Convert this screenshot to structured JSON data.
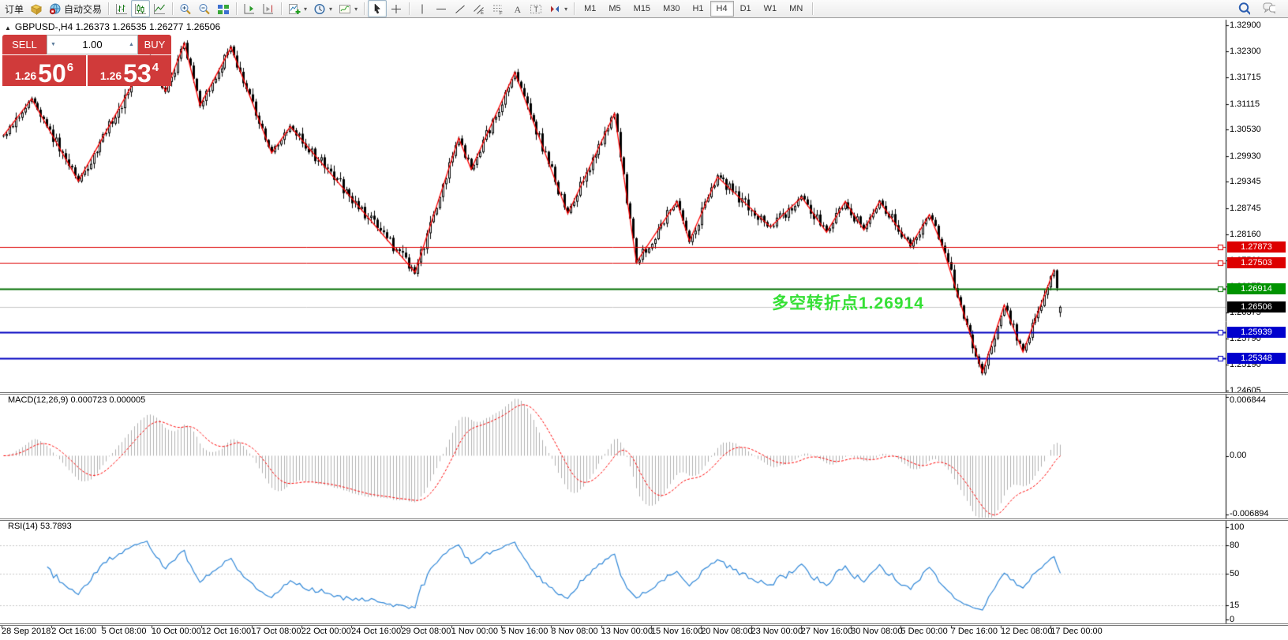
{
  "toolbar": {
    "left": [
      {
        "name": "new-order-button",
        "label": "订单",
        "icon": null
      },
      {
        "name": "gold-box-button",
        "label": "",
        "icon": "gold-box-icon"
      },
      {
        "name": "autotrade-button",
        "label": "自动交易",
        "icon": "autotrade-icon"
      }
    ],
    "groups": [
      {
        "items": [
          {
            "name": "ohlc-bars",
            "icon": "ohlc-bars-icon"
          },
          {
            "name": "candlesticks",
            "icon": "candlestick-icon",
            "active": true
          },
          {
            "name": "line-chart",
            "icon": "line-chart-icon"
          }
        ]
      },
      {
        "items": [
          {
            "name": "zoom-in",
            "icon": "zoom-in-icon"
          },
          {
            "name": "zoom-out",
            "icon": "zoom-out-icon"
          },
          {
            "name": "tile-windows",
            "icon": "tile-windows-icon"
          }
        ]
      },
      {
        "items": [
          {
            "name": "shift-chart",
            "icon": "shift-chart-icon"
          },
          {
            "name": "auto-scroll",
            "icon": "auto-scroll-icon"
          }
        ]
      },
      {
        "items": [
          {
            "name": "indicators",
            "icon": "indicators-icon",
            "dropdown": true
          },
          {
            "name": "periods",
            "icon": "periods-icon",
            "dropdown": true
          },
          {
            "name": "templates",
            "icon": "templates-icon",
            "dropdown": true
          }
        ]
      },
      {
        "items": [
          {
            "name": "cursor",
            "icon": "cursor-icon",
            "active": true
          },
          {
            "name": "crosshair",
            "icon": "crosshair-icon"
          }
        ]
      },
      {
        "items": [
          {
            "name": "vertical-line",
            "icon": "vertical-line-icon"
          },
          {
            "name": "horizontal-line",
            "icon": "horizontal-line-icon"
          },
          {
            "name": "trendline",
            "icon": "trendline-icon"
          },
          {
            "name": "equidistant-channel",
            "icon": "equidistant-channel-icon"
          },
          {
            "name": "fibonacci",
            "icon": "fibonacci-icon"
          },
          {
            "name": "text",
            "icon": "text-icon"
          },
          {
            "name": "text-label",
            "icon": "text-label-icon"
          },
          {
            "name": "arrows",
            "icon": "arrows-icon",
            "dropdown": true
          }
        ]
      }
    ],
    "timeframes": [
      {
        "label": "M1"
      },
      {
        "label": "M5"
      },
      {
        "label": "M15"
      },
      {
        "label": "M30"
      },
      {
        "label": "H1"
      },
      {
        "label": "H4",
        "active": true
      },
      {
        "label": "D1"
      },
      {
        "label": "W1"
      },
      {
        "label": "MN"
      }
    ],
    "right": [
      {
        "name": "search",
        "icon": "search-icon"
      },
      {
        "name": "chat",
        "icon": "chat-icon"
      }
    ]
  },
  "chart": {
    "title": "GBPUSD-,H4  1.26373 1.26535 1.26277 1.26506",
    "trade_panel": {
      "sell_label": "SELL",
      "buy_label": "BUY",
      "volume": "1.00",
      "sell_price": {
        "prefix": "1.26",
        "big": "50",
        "sup": "6"
      },
      "buy_price": {
        "prefix": "1.26",
        "big": "53",
        "sup": "4"
      }
    },
    "annotation": {
      "text": "多空转折点1.26914",
      "color": "#35e035"
    },
    "price_ticks": [
      "1.32900",
      "1.32300",
      "1.31715",
      "1.31115",
      "1.30530",
      "1.29930",
      "1.29345",
      "1.28745",
      "1.28160",
      "1.27560",
      "1.26975",
      "1.26375",
      "1.25790",
      "1.25190",
      "1.24605"
    ],
    "hlines": [
      {
        "price": "1.27873",
        "color": "#dd0000",
        "badge": "#dd0000",
        "width": 1
      },
      {
        "price": "1.27503",
        "color": "#dd0000",
        "badge": "#dd0000",
        "width": 1
      },
      {
        "price": "1.26914",
        "color": "#006e00",
        "badge": "#009300",
        "width": 2
      },
      {
        "price": "1.25939",
        "color": "#0000c0",
        "badge": "#0000cd",
        "width": 2
      },
      {
        "price": "1.25348",
        "color": "#0000c0",
        "badge": "#0000cd",
        "width": 2
      }
    ],
    "current_price": {
      "label": "1.26506",
      "line_color": "#c8c8c8",
      "badge_color": "#000000"
    },
    "zigzag": {
      "color": "#ff0000",
      "pivots": [
        [
          0,
          1.304
        ],
        [
          9,
          1.3123
        ],
        [
          24,
          1.2936
        ],
        [
          46,
          1.3215
        ],
        [
          52,
          1.314
        ],
        [
          58,
          1.3249
        ],
        [
          63,
          1.3108
        ],
        [
          73,
          1.324
        ],
        [
          86,
          1.3
        ],
        [
          92,
          1.306
        ],
        [
          132,
          1.2729
        ],
        [
          146,
          1.3034
        ],
        [
          150,
          1.2963
        ],
        [
          164,
          1.3183
        ],
        [
          181,
          1.2862
        ],
        [
          196,
          1.309
        ],
        [
          203,
          1.2752
        ],
        [
          216,
          1.289
        ],
        [
          220,
          1.28
        ],
        [
          229,
          1.2946
        ],
        [
          246,
          1.2832
        ],
        [
          256,
          1.29
        ],
        [
          264,
          1.282
        ],
        [
          270,
          1.289
        ],
        [
          276,
          1.2825
        ],
        [
          281,
          1.289
        ],
        [
          291,
          1.279
        ],
        [
          297,
          1.286
        ],
        [
          301,
          1.2792
        ],
        [
          314,
          1.2502
        ],
        [
          321,
          1.2655
        ],
        [
          327,
          1.2548
        ],
        [
          337,
          1.2735
        ],
        [
          339,
          1.26506
        ]
      ]
    },
    "dates": [
      "28 Sep 2018",
      "2 Oct 16:00",
      "5 Oct 08:00",
      "10 Oct 00:00",
      "12 Oct 16:00",
      "17 Oct 08:00",
      "22 Oct 00:00",
      "24 Oct 16:00",
      "29 Oct 08:00",
      "1 Nov 00:00",
      "5 Nov 16:00",
      "8 Nov 08:00",
      "13 Nov 00:00",
      "15 Nov 16:00",
      "20 Nov 08:00",
      "23 Nov 00:00",
      "27 Nov 16:00",
      "30 Nov 08:00",
      "5 Dec 00:00",
      "7 Dec 16:00",
      "12 Dec 08:00",
      "17 Dec 00:00"
    ]
  },
  "macd": {
    "label": "MACD(12,26,9) 0.000723 0.000005",
    "macd_value": "0.000723",
    "signal_value": "0.000005",
    "axis": [
      {
        "label": "0.006844",
        "v": 0.006844
      },
      {
        "label": "0.00",
        "v": 0
      },
      {
        "label": "-0.006894",
        "v": -0.006894
      }
    ],
    "hist_color": "#b0b0b0",
    "signal_color": "#ff0000"
  },
  "rsi": {
    "label": "RSI(14) 53.7893",
    "value": "53.7893",
    "axis": [
      {
        "label": "100",
        "v": 100
      },
      {
        "label": "80",
        "v": 80
      },
      {
        "label": "50",
        "v": 50
      },
      {
        "label": "15",
        "v": 15
      },
      {
        "label": "0",
        "v": 0
      }
    ],
    "levels": [
      80,
      50,
      15
    ],
    "line_color": "#2e86d7",
    "level_color": "#c8c8c8"
  },
  "chart_data": {
    "type": "candlestick",
    "symbol": "GBPUSD-",
    "timeframe": "H4",
    "open": 1.26373,
    "high": 1.26535,
    "low": 1.26277,
    "close": 1.26506,
    "levels": [
      1.27873,
      1.27503,
      1.26914,
      1.25939,
      1.25348
    ],
    "y_axis_range": [
      1.24605,
      1.329
    ],
    "x_range": [
      "28 Sep 2018",
      "17 Dec 00:00"
    ],
    "indicators": [
      "ZigZag",
      "MACD(12,26,9)",
      "RSI(14)"
    ]
  }
}
